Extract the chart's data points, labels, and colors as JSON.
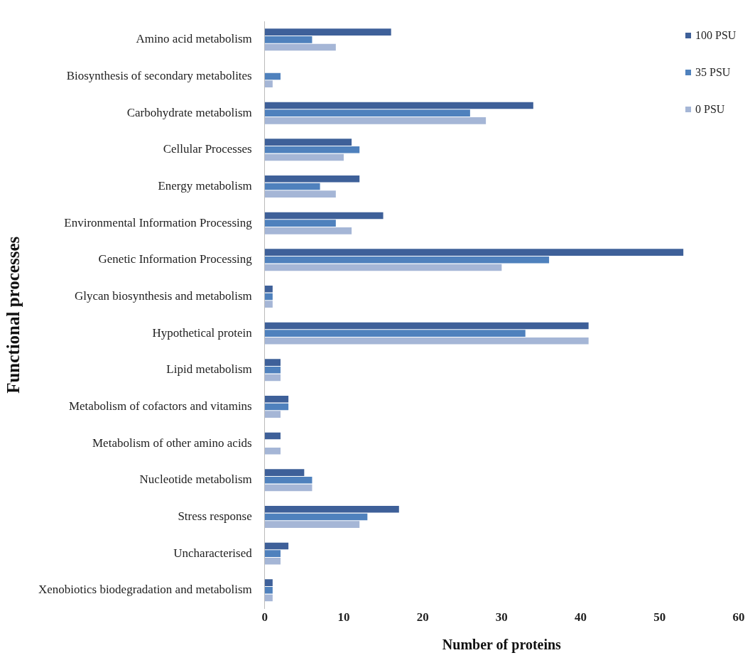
{
  "chart_data": {
    "type": "bar",
    "orientation": "horizontal",
    "xlabel": "Number of proteins",
    "ylabel": "Functional processes",
    "categories": [
      "Amino acid metabolism",
      "Biosynthesis of secondary metabolites",
      "Carbohydrate metabolism",
      "Cellular Processes",
      "Energy metabolism",
      "Environmental Information Processing",
      "Genetic Information Processing",
      "Glycan biosynthesis and metabolism",
      "Hypothetical protein",
      "Lipid metabolism",
      "Metabolism of cofactors and vitamins",
      "Metabolism of other amino acids",
      "Nucleotide metabolism",
      "Stress response",
      "Uncharacterised",
      "Xenobiotics biodegradation and metabolism"
    ],
    "series": [
      {
        "name": "100 PSU",
        "color": "#3e6099",
        "values": [
          16,
          0,
          34,
          11,
          12,
          15,
          53,
          1,
          41,
          2,
          3,
          2,
          5,
          17,
          3,
          1
        ]
      },
      {
        "name": "35 PSU",
        "color": "#4f81bd",
        "values": [
          6,
          2,
          26,
          12,
          7,
          9,
          36,
          1,
          33,
          2,
          3,
          0,
          6,
          13,
          2,
          1
        ]
      },
      {
        "name": "0 PSU",
        "color": "#a5b6d6",
        "values": [
          9,
          1,
          28,
          10,
          9,
          11,
          30,
          1,
          41,
          2,
          2,
          2,
          6,
          12,
          2,
          1
        ]
      }
    ],
    "xlim": [
      0,
      60
    ],
    "xticks": [
      0,
      10,
      20,
      30,
      40,
      50,
      60
    ],
    "grid": false,
    "legend": "top right"
  }
}
